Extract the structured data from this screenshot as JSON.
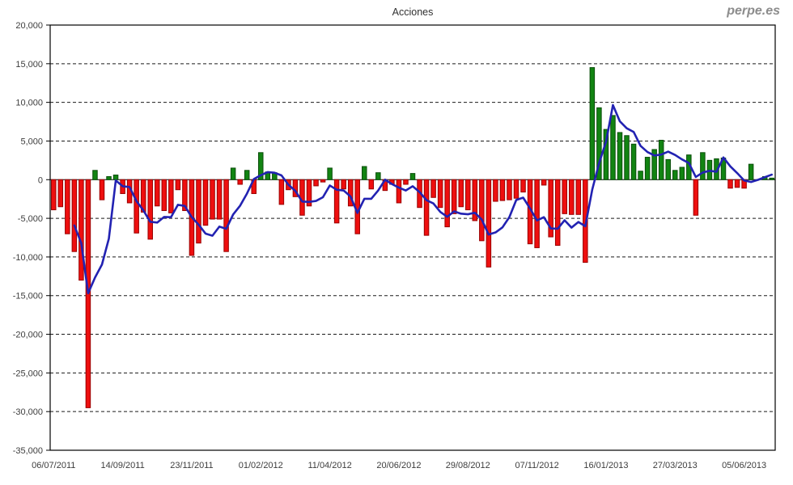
{
  "chart_data": {
    "type": "bar",
    "title": "Acciones",
    "watermark": "perpe.es",
    "y_axis": {
      "min": -35000,
      "max": 20000,
      "step": 5000,
      "tick_labels": [
        "20,000",
        "15,000",
        "10,000",
        "5,000",
        "0",
        "-5,000",
        "-10,000",
        "-15,000",
        "-20,000",
        "-25,000",
        "-30,000",
        "-35,000"
      ]
    },
    "x_axis": {
      "tick_every": 10,
      "tick_labels": [
        "06/07/2011",
        "14/09/2011",
        "23/11/2011",
        "01/02/2012",
        "11/04/2012",
        "20/06/2012",
        "29/08/2012",
        "07/11/2012",
        "16/01/2013",
        "27/03/2013",
        "05/06/2013"
      ]
    },
    "values": [
      -3900,
      -3500,
      -7000,
      -9300,
      -13000,
      -29500,
      1200,
      -2600,
      400,
      600,
      -1800,
      -3000,
      -6900,
      -4200,
      -7700,
      -3400,
      -4000,
      -4300,
      -1300,
      -4000,
      -9800,
      -8200,
      -5900,
      -5100,
      -5100,
      -9300,
      1500,
      -600,
      1200,
      -1800,
      3500,
      1000,
      900,
      -3200,
      -1300,
      -2200,
      -4600,
      -3400,
      -800,
      -300,
      1500,
      -5600,
      -1200,
      -3400,
      -7000,
      1700,
      -1200,
      900,
      -1400,
      -600,
      -3000,
      -600,
      800,
      -3600,
      -7200,
      -2300,
      -3600,
      -6100,
      -4400,
      -3500,
      -3900,
      -5300,
      -7900,
      -11300,
      -2800,
      -2700,
      -2600,
      -2400,
      -1600,
      -8300,
      -8800,
      -700,
      -7400,
      -8500,
      -4400,
      -4500,
      -4500,
      -10700,
      14500,
      9300,
      6500,
      8300,
      6100,
      5700,
      4600,
      1100,
      2900,
      3900,
      5100,
      2600,
      1200,
      1600,
      3200,
      -4600,
      3500,
      2500,
      2700,
      2800,
      -1100,
      -1000,
      -1100,
      2000,
      0,
      400,
      200
    ],
    "line": {
      "type": "moving_average",
      "window": 4
    },
    "colors": {
      "positive_bar": "#128412",
      "positive_border": "#0a4d0a",
      "negative_bar": "#ee0f0f",
      "negative_border": "#990000",
      "ma_line": "#2222b2",
      "grid": "#1a1a1a",
      "axis_text": "#3d3d3d"
    }
  }
}
